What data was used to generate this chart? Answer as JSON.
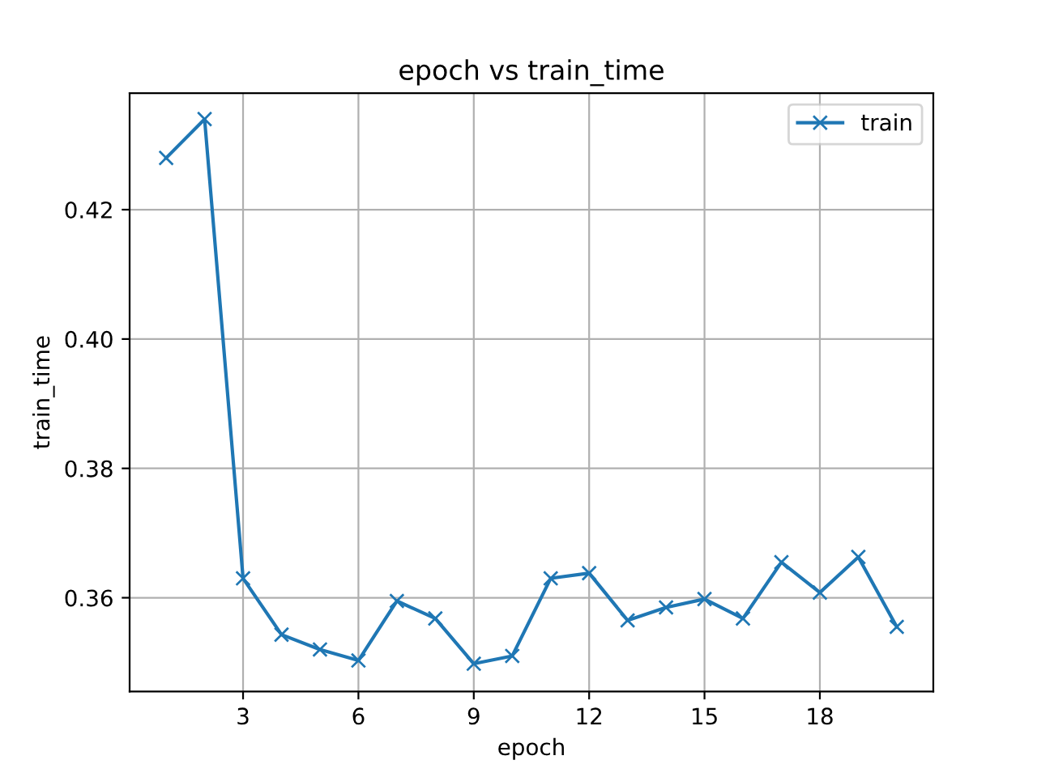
{
  "chart_data": {
    "type": "line",
    "title": "epoch vs train_time",
    "xlabel": "epoch",
    "ylabel": "train_time",
    "x": [
      1,
      2,
      3,
      4,
      5,
      6,
      7,
      8,
      9,
      10,
      11,
      12,
      13,
      14,
      15,
      16,
      17,
      18,
      19,
      20
    ],
    "series": [
      {
        "name": "train",
        "color": "#1f77b4",
        "values": [
          0.428,
          0.434,
          0.363,
          0.3543,
          0.352,
          0.3503,
          0.3595,
          0.3568,
          0.3498,
          0.351,
          0.363,
          0.3638,
          0.3565,
          0.3585,
          0.3598,
          0.3568,
          0.3655,
          0.3608,
          0.3663,
          0.3555
        ]
      }
    ],
    "xlim": [
      0.05,
      20.95
    ],
    "ylim": [
      0.3455,
      0.438
    ],
    "xticks": [
      3,
      6,
      9,
      12,
      15,
      18
    ],
    "yticks": [
      {
        "value": 0.36,
        "label": "0.36"
      },
      {
        "value": 0.38,
        "label": "0.38"
      },
      {
        "value": 0.4,
        "label": "0.40"
      },
      {
        "value": 0.42,
        "label": "0.42"
      }
    ],
    "grid": true,
    "legend": "top right",
    "marker": "cross",
    "line_style": "solid"
  }
}
